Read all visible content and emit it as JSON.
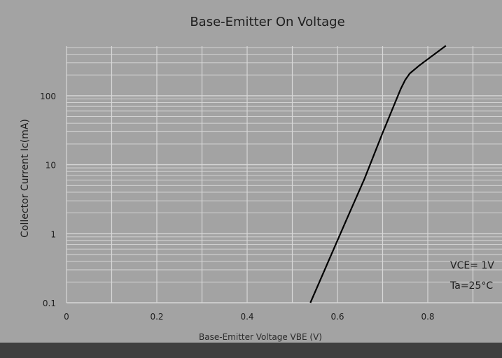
{
  "chart_data": {
    "type": "line",
    "title": "Base-Emitter On Voltage",
    "xlabel": "Base-Emitter Voltage VBE (V)",
    "ylabel": "Collector Current   Ic(mA)",
    "xlim": [
      0,
      0.9
    ],
    "ylim": [
      0.1,
      600
    ],
    "yscale": "log",
    "grid": true,
    "x_ticks": [
      "0",
      "0.2",
      "0.4",
      "0.6",
      "0.8"
    ],
    "x_tick_values": [
      0,
      0.2,
      0.4,
      0.6,
      0.8
    ],
    "y_ticks": [
      "0.1",
      "1",
      "10",
      "100"
    ],
    "y_tick_values": [
      0.1,
      1,
      10,
      100
    ],
    "annotations": [
      "VCE= 1V",
      "Ta=25°C"
    ],
    "series": [
      {
        "x": [
          0.54,
          0.58,
          0.62,
          0.66,
          0.7,
          0.74,
          0.75,
          0.76,
          0.78,
          0.81,
          0.84
        ],
        "y": [
          0.1,
          0.4,
          1.6,
          6.3,
          29,
          125,
          170,
          210,
          270,
          380,
          530
        ]
      }
    ],
    "colors": {
      "page_background": "#3f3f3f",
      "plot_background": "#a3a3a3",
      "grid": "#d8d8d8",
      "curve": "#000000",
      "text": "#1e1e1e"
    }
  }
}
